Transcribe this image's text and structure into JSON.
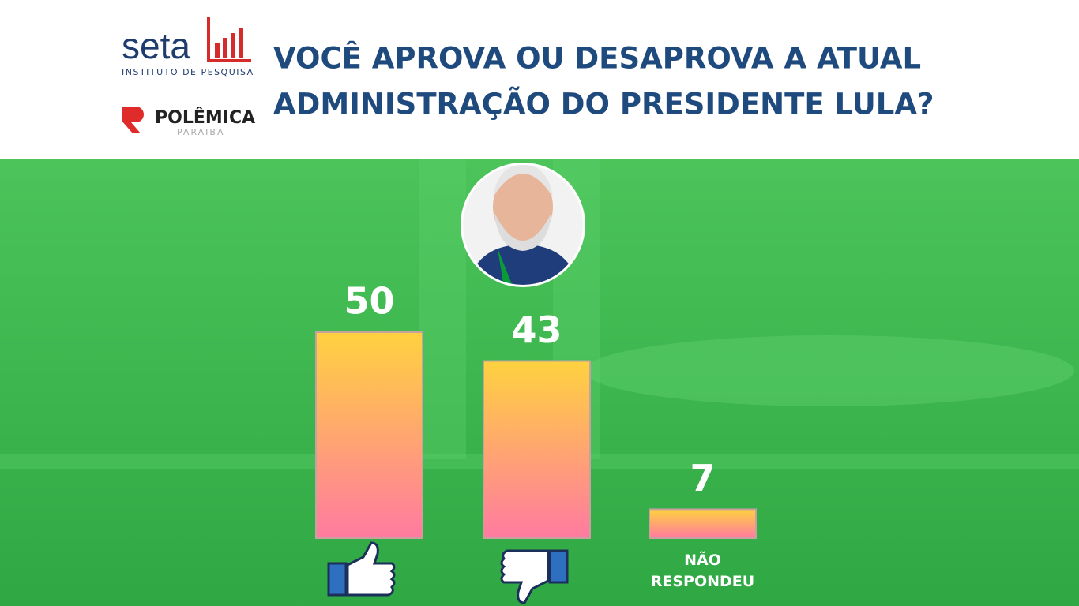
{
  "brand": {
    "seta": "seta",
    "seta_sub": "INSTITUTO DE PESQUISA",
    "polemica": "POLÊMICA",
    "polemica_sub": "PARAIBA"
  },
  "chart_data": {
    "type": "bar",
    "title": [
      "VOCÊ APROVA OU DESAPROVA A ATUAL",
      "ADMINISTRAÇÃO DO PRESIDENTE LULA?"
    ],
    "categories": [
      null,
      null,
      "NÃO RESPONDEU"
    ],
    "values": [
      50,
      43,
      7
    ],
    "gradient": [
      "#ffd23f",
      "#ff7aa0"
    ]
  }
}
